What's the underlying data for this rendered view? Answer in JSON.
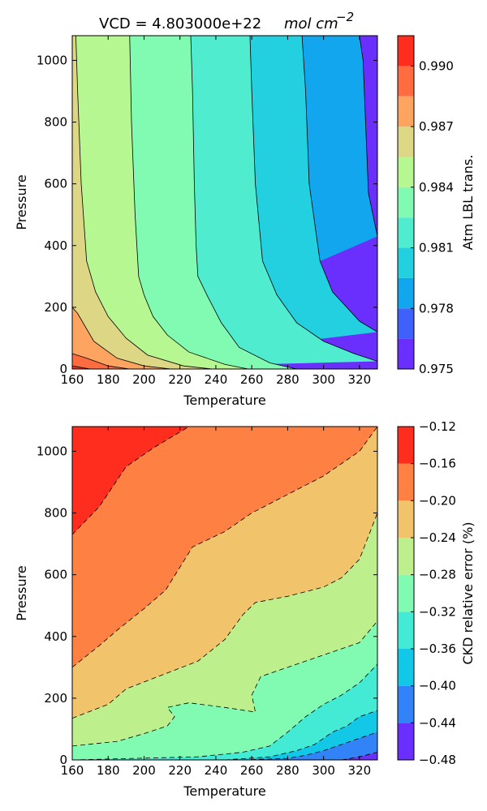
{
  "chart_data": [
    {
      "type": "contour",
      "title": "VCD = 4.803000e+22",
      "title_math": "mol cm",
      "title_exponent": "−2",
      "xlabel": "Temperature",
      "ylabel": "Pressure",
      "xlim": [
        160,
        330
      ],
      "ylim": [
        0,
        1080
      ],
      "xticks": [
        "160",
        "180",
        "200",
        "220",
        "240",
        "260",
        "280",
        "300",
        "320"
      ],
      "yticks": [
        "0",
        "200",
        "400",
        "600",
        "800",
        "1000"
      ],
      "colorbar_label": "Atm LBL trans.",
      "colorbar_ticks": [
        "0.975",
        "0.978",
        "0.981",
        "0.984",
        "0.987",
        "0.990"
      ],
      "colorbar_range": [
        0.975,
        0.9915
      ],
      "levels": [
        0.975,
        0.9765,
        0.978,
        0.9795,
        0.981,
        0.9825,
        0.984,
        0.9855,
        0.987,
        0.9885,
        0.99,
        0.9915
      ],
      "level_colors": [
        "#6a2ffc",
        "#4060fb",
        "#12a6ee",
        "#22d0e0",
        "#50ecd0",
        "#82fbb2",
        "#b6f791",
        "#ddd684",
        "#fda560",
        "#fe6c40",
        "#fe2d1d"
      ],
      "bands": [
        {
          "level": 0.9765,
          "color": "#4060fb",
          "boundary": [
            [
              330,
              430
            ],
            [
              325,
              570
            ],
            [
              322,
              1000
            ],
            [
              320,
              1080
            ]
          ]
        },
        {
          "level": 0.978,
          "color": "#12a6ee",
          "boundary": [
            [
              330,
              120
            ],
            [
              320,
              155
            ],
            [
              305,
              250
            ],
            [
              298,
              350
            ],
            [
              292,
              600
            ],
            [
              290,
              900
            ],
            [
              288,
              1080
            ]
          ]
        },
        {
          "level": 0.9795,
          "color": "#22d0e0",
          "boundary": [
            [
              330,
              25
            ],
            [
              317,
              50
            ],
            [
              300,
              90
            ],
            [
              285,
              150
            ],
            [
              274,
              240
            ],
            [
              266,
              350
            ],
            [
              262,
              600
            ],
            [
              260,
              900
            ],
            [
              259,
              1080
            ]
          ]
        },
        {
          "level": 0.981,
          "color": "#50ecd0",
          "boundary": [
            [
              285,
              0
            ],
            [
              270,
              20
            ],
            [
              253,
              70
            ],
            [
              243,
              150
            ],
            [
              235,
              240
            ],
            [
              230,
              300
            ],
            [
              229,
              400
            ],
            [
              228,
              600
            ],
            [
              227,
              900
            ],
            [
              226,
              1080
            ]
          ]
        },
        {
          "level": 0.9825,
          "color": "#82fbb2",
          "boundary": [
            [
              258,
              0
            ],
            [
              245,
              15
            ],
            [
              225,
              55
            ],
            [
              213,
              110
            ],
            [
              205,
              170
            ],
            [
              200,
              240
            ],
            [
              197,
              300
            ],
            [
              195,
              500
            ],
            [
              193,
              800
            ],
            [
              192,
              1080
            ]
          ]
        },
        {
          "level": 0.984,
          "color": "#b6f791",
          "boundary": [
            [
              238,
              0
            ],
            [
              222,
              10
            ],
            [
              202,
              45
            ],
            [
              190,
              100
            ],
            [
              180,
              170
            ],
            [
              173,
              250
            ],
            [
              168,
              350
            ],
            [
              165,
              600
            ],
            [
              163,
              900
            ],
            [
              162,
              1080
            ]
          ]
        },
        {
          "level": 0.9855,
          "color": "#ddd684",
          "boundary": [
            [
              215,
              0
            ],
            [
              200,
              10
            ],
            [
              185,
              35
            ],
            [
              172,
              90
            ],
            [
              163,
              180
            ],
            [
              160,
              200
            ]
          ]
        },
        {
          "level": 0.987,
          "color": "#fda560",
          "boundary": [
            [
              192,
              0
            ],
            [
              180,
              10
            ],
            [
              168,
              35
            ],
            [
              160,
              50
            ]
          ]
        },
        {
          "level": 0.9885,
          "color": "#fe6c40",
          "boundary": [
            [
              170,
              0
            ],
            [
              162,
              8
            ],
            [
              160,
              10
            ]
          ]
        }
      ]
    },
    {
      "type": "contour",
      "title": "",
      "xlabel": "Temperature",
      "ylabel": "Pressure",
      "xlim": [
        160,
        330
      ],
      "ylim": [
        0,
        1080
      ],
      "xticks": [
        "160",
        "180",
        "200",
        "220",
        "240",
        "260",
        "280",
        "300",
        "320"
      ],
      "yticks": [
        "0",
        "200",
        "400",
        "600",
        "800",
        "1000"
      ],
      "colorbar_label": "CKD relative error (%)",
      "colorbar_ticks": [
        "−0.12",
        "−0.16",
        "−0.20",
        "−0.24",
        "−0.28",
        "−0.32",
        "−0.36",
        "−0.40",
        "−0.44",
        "−0.48"
      ],
      "colorbar_range": [
        -0.48,
        -0.12
      ],
      "levels": [
        -0.48,
        -0.44,
        -0.4,
        -0.36,
        -0.32,
        -0.28,
        -0.24,
        -0.2,
        -0.16,
        -0.12
      ],
      "level_colors": [
        "#6a2ffc",
        "#3283f8",
        "#12c8e6",
        "#43ead4",
        "#82fbb2",
        "#bdf08d",
        "#f1c46c",
        "#fe8042",
        "#fe2d1d"
      ],
      "bands": [
        {
          "level": -0.48,
          "color": "#6a2ffc",
          "boundary": [
            [
              310,
              0
            ],
            [
              320,
              10
            ],
            [
              330,
              25
            ]
          ]
        },
        {
          "level": -0.44,
          "color": "#3283f8",
          "boundary": [
            [
              255,
              0
            ],
            [
              280,
              5
            ],
            [
              290,
              15
            ],
            [
              300,
              30
            ],
            [
              310,
              50
            ],
            [
              320,
              70
            ],
            [
              330,
              90
            ]
          ]
        },
        {
          "level": -0.4,
          "color": "#12c8e6",
          "boundary": [
            [
              245,
              0
            ],
            [
              270,
              10
            ],
            [
              285,
              30
            ],
            [
              295,
              50
            ],
            [
              305,
              90
            ],
            [
              313,
              110
            ],
            [
              320,
              140
            ],
            [
              330,
              160
            ]
          ]
        },
        {
          "level": -0.36,
          "color": "#43ead4",
          "boundary": [
            [
              160,
              0
            ],
            [
              230,
              10
            ],
            [
              255,
              25
            ],
            [
              270,
              45
            ],
            [
              280,
              90
            ],
            [
              290,
              140
            ],
            [
              300,
              180
            ],
            [
              310,
              210
            ],
            [
              320,
              250
            ],
            [
              330,
              310
            ]
          ]
        },
        {
          "level": -0.32,
          "color": "#82fbb2",
          "boundary": [
            [
              160,
              45
            ],
            [
              185,
              60
            ],
            [
              200,
              85
            ],
            [
              213,
              110
            ],
            [
              217,
              140
            ],
            [
              213,
              170
            ],
            [
              225,
              185
            ],
            [
              245,
              170
            ],
            [
              262,
              155
            ],
            [
              260,
              210
            ],
            [
              265,
              270
            ],
            [
              280,
              300
            ],
            [
              300,
              340
            ],
            [
              320,
              380
            ],
            [
              330,
              450
            ]
          ]
        },
        {
          "level": -0.28,
          "color": "#bdf08d",
          "boundary": [
            [
              160,
              135
            ],
            [
              180,
              180
            ],
            [
              190,
              230
            ],
            [
              210,
              275
            ],
            [
              230,
              320
            ],
            [
              245,
              390
            ],
            [
              255,
              470
            ],
            [
              262,
              510
            ],
            [
              280,
              530
            ],
            [
              300,
              560
            ],
            [
              310,
              590
            ],
            [
              320,
              650
            ],
            [
              330,
              800
            ]
          ]
        },
        {
          "level": -0.24,
          "color": "#f1c46c",
          "boundary": [
            [
              160,
              300
            ],
            [
              175,
              370
            ],
            [
              185,
              420
            ],
            [
              200,
              490
            ],
            [
              212,
              550
            ],
            [
              227,
              690
            ],
            [
              245,
              740
            ],
            [
              260,
              800
            ],
            [
              280,
              860
            ],
            [
              300,
              920
            ],
            [
              320,
              1000
            ],
            [
              330,
              1080
            ]
          ]
        },
        {
          "level": -0.2,
          "color": "#fe8042",
          "boundary": [
            [
              160,
              730
            ],
            [
              175,
              820
            ],
            [
              190,
              950
            ],
            [
              205,
              1010
            ],
            [
              225,
              1080
            ]
          ]
        }
      ]
    }
  ]
}
